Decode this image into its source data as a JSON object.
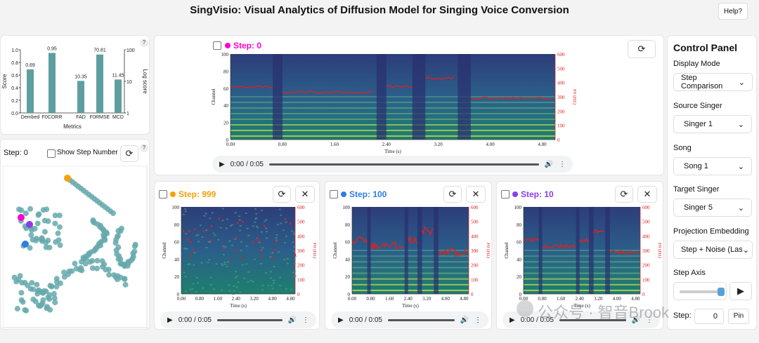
{
  "app": {
    "title": "SingVisio: Visual Analytics of Diffusion Model for Singing Voice Conversion",
    "help_label": "Help?"
  },
  "metrics": {
    "help": "?",
    "left_axis_label": "Score",
    "right_axis_label": "Log score",
    "x_label": "Metrics",
    "left_ticks": [
      "1.0",
      "0.8",
      "0.6",
      "0.4",
      "0.2",
      "0.0"
    ],
    "right_ticks": [
      "100",
      "10",
      "1"
    ],
    "bars": [
      {
        "name": "Dembed",
        "value": 0.69,
        "label": "0.69"
      },
      {
        "name": "F0CORR",
        "value": 0.95,
        "label": "0.95"
      },
      {
        "name": "FAD",
        "value": 10.35,
        "label": "10.35"
      },
      {
        "name": "F0RMSE",
        "value": 70.81,
        "label": "70.81"
      },
      {
        "name": "MCD",
        "value": 11.45,
        "label": "11.45"
      }
    ],
    "bar_color": "#5f9ea0"
  },
  "projection": {
    "step_label": "Step: 0",
    "show_step_number": "Show Step Number",
    "help": "?"
  },
  "spectrograms": {
    "x_label": "Time (s)",
    "y_label": "Channel",
    "y2_label": "F0 (Hz)",
    "x_ticks": [
      "0.00",
      "0.80",
      "1.60",
      "2.40",
      "3.20",
      "4.00",
      "4.80"
    ],
    "y_ticks": [
      "100",
      "80",
      "60",
      "40",
      "20",
      "0"
    ],
    "y2_ticks": [
      "600",
      "500",
      "400",
      "300",
      "200",
      "100",
      "0"
    ],
    "main": {
      "label": "Step: 0",
      "color": "#ff00cc",
      "audio_time": "0:00 / 0:05"
    },
    "s999": {
      "label": "Step: 999",
      "color": "#f5a10a",
      "audio_time": "0:00 / 0:05"
    },
    "s100": {
      "label": "Step: 100",
      "color": "#2f7de1",
      "audio_time": "0:00 / 0:05"
    },
    "s10": {
      "label": "Step: 10",
      "color": "#8a3ee8",
      "audio_time": "0:00 / 0:05"
    }
  },
  "control": {
    "title": "Control Panel",
    "display_mode_label": "Display Mode",
    "display_mode_value": "Step Comparison",
    "source_singer_label": "Source Singer",
    "source_singer_value": "Singer 1",
    "song_label": "Song",
    "song_value": "Song 1",
    "target_singer_label": "Target Singer",
    "target_singer_value": "Singer 5",
    "projection_label": "Projection Embedding",
    "projection_value": "Step + Noise (Las",
    "step_axis_label": "Step Axis",
    "step_label": "Step:",
    "step_value": "0",
    "pin_label": "Pin"
  },
  "watermark": "公众号 · 智音Brook"
}
